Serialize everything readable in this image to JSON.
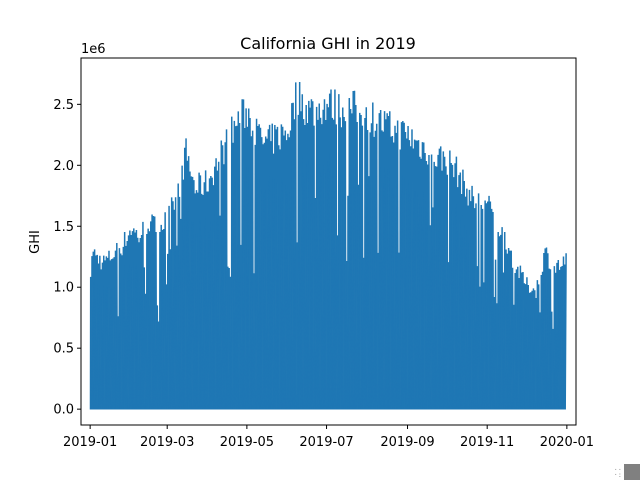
{
  "chart_data": {
    "type": "area",
    "title": "California GHI in 2019",
    "xlabel": "",
    "ylabel": "GHI",
    "y_offset_label": "1e6",
    "xlim": [
      "2018-12-25",
      "2020-01-08"
    ],
    "ylim": [
      -0.13,
      2.88
    ],
    "y_ticks": [
      {
        "value": 0.0,
        "label": "0.0"
      },
      {
        "value": 0.5,
        "label": "0.5"
      },
      {
        "value": 1.0,
        "label": "1.0"
      },
      {
        "value": 1.5,
        "label": "1.5"
      },
      {
        "value": 2.0,
        "label": "2.0"
      },
      {
        "value": 2.5,
        "label": "2.5"
      }
    ],
    "x_ticks": [
      {
        "value": "2019-01-01",
        "label": "2019-01"
      },
      {
        "value": "2019-03-01",
        "label": "2019-03"
      },
      {
        "value": "2019-05-01",
        "label": "2019-05"
      },
      {
        "value": "2019-07-01",
        "label": "2019-07"
      },
      {
        "value": "2019-09-01",
        "label": "2019-09"
      },
      {
        "value": "2019-11-01",
        "label": "2019-11"
      },
      {
        "value": "2020-01-01",
        "label": "2020-01"
      }
    ],
    "grid": false,
    "series_color": "#1f77b4",
    "series": [
      {
        "x": [
          "2019-01-01",
          "2019-01-05",
          "2019-01-10",
          "2019-01-15",
          "2019-01-20",
          "2019-01-25",
          "2019-02-01",
          "2019-02-07",
          "2019-02-14",
          "2019-02-21",
          "2019-03-01",
          "2019-03-08",
          "2019-03-15",
          "2019-03-22",
          "2019-04-01",
          "2019-04-08",
          "2019-04-15",
          "2019-04-22",
          "2019-05-01",
          "2019-05-08",
          "2019-05-15",
          "2019-05-22",
          "2019-06-01",
          "2019-06-08",
          "2019-06-15",
          "2019-06-22",
          "2019-07-01",
          "2019-07-08",
          "2019-07-15",
          "2019-07-22",
          "2019-08-01",
          "2019-08-08",
          "2019-08-15",
          "2019-08-22",
          "2019-09-01",
          "2019-09-08",
          "2019-09-15",
          "2019-09-22",
          "2019-10-01",
          "2019-10-08",
          "2019-10-15",
          "2019-10-22",
          "2019-11-01",
          "2019-11-08",
          "2019-11-15",
          "2019-11-22",
          "2019-12-01",
          "2019-12-08",
          "2019-12-15",
          "2019-12-22",
          "2019-12-31"
        ],
        "values": [
          1.4,
          1.33,
          1.28,
          1.31,
          1.37,
          1.42,
          1.57,
          1.5,
          1.63,
          1.58,
          1.65,
          1.86,
          2.23,
          1.92,
          1.98,
          2.15,
          2.32,
          2.48,
          2.6,
          2.4,
          2.31,
          2.36,
          2.42,
          2.75,
          2.62,
          2.6,
          2.66,
          2.63,
          2.6,
          2.62,
          2.58,
          2.51,
          2.47,
          2.42,
          2.39,
          2.31,
          2.27,
          2.2,
          2.17,
          2.08,
          1.92,
          1.81,
          1.78,
          1.62,
          1.47,
          1.25,
          1.08,
          1.03,
          1.37,
          1.22,
          1.28
        ]
      }
    ]
  }
}
